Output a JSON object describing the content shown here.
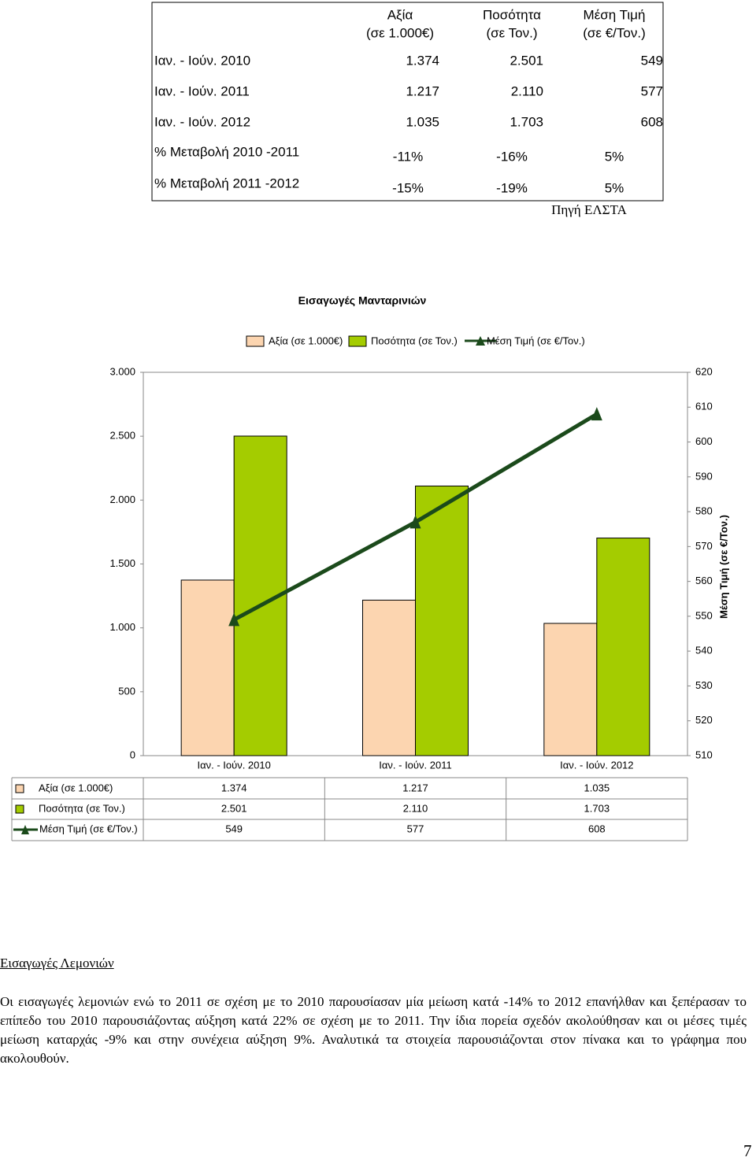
{
  "table": {
    "header": [
      [
        "Αξία",
        "(σε 1.000€)"
      ],
      [
        "Ποσότητα",
        "(σε Τον.)"
      ],
      [
        "Μέση Τιμή",
        "(σε €/Τον.)"
      ]
    ],
    "rows": [
      [
        "Ιαν. - Ιούν. 2010",
        "1.374",
        "2.501",
        "549"
      ],
      [
        "Ιαν. - Ιούν. 2011",
        "1.217",
        "2.110",
        "577"
      ],
      [
        "Ιαν. - Ιούν. 2012",
        "1.035",
        "1.703",
        "608"
      ],
      [
        "% Μεταβολή 2010 -2011",
        "-11%",
        "-16%",
        "5%"
      ],
      [
        "% Μεταβολή 2011 -2012",
        "-15%",
        "-19%",
        "5%"
      ]
    ],
    "source": "Πηγή ΕΛΣΤΑ"
  },
  "chart_data": {
    "type": "bar-line",
    "title": "Εισαγωγές Μανταρινιών",
    "legend": "top",
    "categories": [
      "Ιαν. - Ιούν. 2010",
      "Ιαν. - Ιούν. 2011",
      "Ιαν. - Ιούν. 2012"
    ],
    "series": [
      {
        "name": "Αξία (σε 1.000€)",
        "type": "bar",
        "color": "#fcd5b0",
        "values": [
          1374,
          1217,
          1035
        ],
        "value_labels": [
          "1.374",
          "1.217",
          "1.035"
        ]
      },
      {
        "name": "Ποσότητα (σε Τον.)",
        "type": "bar",
        "color": "#a4cc00",
        "values": [
          2501,
          2110,
          1703
        ],
        "value_labels": [
          "2.501",
          "2.110",
          "1.703"
        ]
      },
      {
        "name": "Μέση Τιμή (σε €/Τον.)",
        "type": "line",
        "axis": "y2",
        "color": "#1b4a1b",
        "values": [
          549,
          577,
          608
        ]
      }
    ],
    "ylim": [
      0,
      3000
    ],
    "yticks": [
      0,
      500,
      {
        "value": 1000,
        "label": "1.000"
      },
      {
        "value": 1500,
        "label": "1.500"
      },
      {
        "value": 2000,
        "label": "2.000"
      },
      {
        "value": 2500,
        "label": "2.500"
      },
      {
        "value": 3000,
        "label": "3.000"
      }
    ],
    "y2lim": [
      510,
      620
    ],
    "y2ticks": [
      510,
      520,
      530,
      540,
      550,
      560,
      570,
      580,
      590,
      600,
      610,
      620
    ],
    "y2label": "Μέση Τιμή (σε €/Τον.)"
  },
  "section_title": "Εισαγωγές Λεμονιών",
  "paragraph": "Οι εισαγωγές λεμονιών ενώ το 2011 σε σχέση με το 2010 παρουσίασαν μία μείωση κατά -14% το 2012 επανήλθαν και ξεπέρασαν το επίπεδο του 2010 παρουσιάζοντας αύξηση κατά 22% σε σχέση με το 2011. Την ίδια πορεία σχεδόν ακολούθησαν και οι μέσες τιμές μείωση καταρχάς -9% και στην συνέχεια αύξηση 9%. Αναλυτικά τα στοιχεία παρουσιάζονται στον πίνακα και το γράφημα που ακολουθούν.",
  "page_number": "7"
}
